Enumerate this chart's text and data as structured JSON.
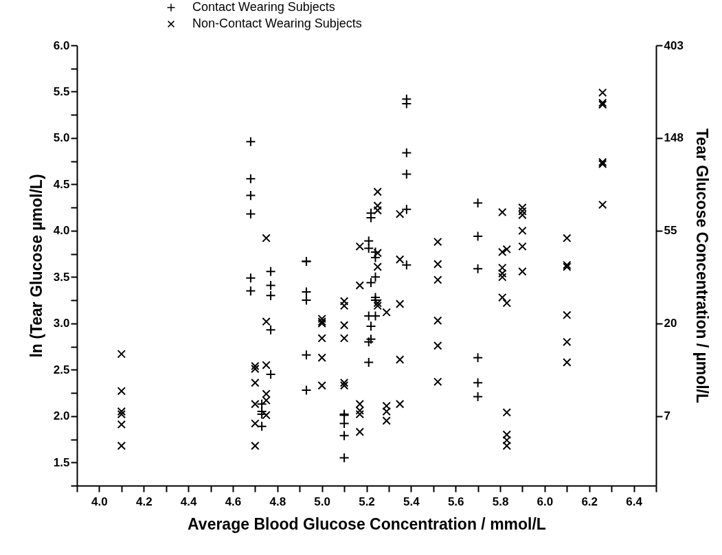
{
  "chart_data": {
    "type": "scatter",
    "xlabel": "Average Blood Glucose Concentration / mmol/L",
    "ylabel": "ln (Tear Glucose µmol/L)",
    "y2label": "Tear Glucose Concentration / µmol/L",
    "xlim": [
      3.9,
      6.5
    ],
    "xticks": [
      {
        "value": 3.9,
        "label": null
      },
      {
        "value": 4,
        "label": "4.0"
      },
      {
        "value": 4.1,
        "label": null
      },
      4.2,
      {
        "value": 4.3,
        "label": null
      },
      4.4,
      {
        "value": 4.5,
        "label": null
      },
      4.6,
      {
        "value": 4.7,
        "label": null
      },
      4.8,
      {
        "value": 4.9,
        "label": null
      },
      {
        "value": 5,
        "label": "5.0"
      },
      {
        "value": 5.1,
        "label": null
      },
      5.2,
      {
        "value": 5.3,
        "label": null
      },
      5.4,
      {
        "value": 5.5,
        "label": null
      },
      5.6,
      {
        "value": 5.7,
        "label": null
      },
      5.8,
      {
        "value": 5.9,
        "label": null
      },
      {
        "value": 6,
        "label": "6.0"
      },
      {
        "value": 6.1,
        "label": null
      },
      6.2,
      {
        "value": 6.3,
        "label": null
      },
      6.4,
      {
        "value": 6.5,
        "label": null
      }
    ],
    "ylim": [
      1.25,
      6.0
    ],
    "yticks": [
      {
        "value": 1.25,
        "label": null
      },
      1.5,
      {
        "value": 1.75,
        "label": null
      },
      {
        "value": 2,
        "label": "2.0"
      },
      {
        "value": 2.25,
        "label": null
      },
      2.5,
      {
        "value": 2.75,
        "label": null
      },
      {
        "value": 3,
        "label": "3.0"
      },
      {
        "value": 3.25,
        "label": null
      },
      3.5,
      {
        "value": 3.75,
        "label": null
      },
      {
        "value": 4,
        "label": "4.0"
      },
      {
        "value": 4.25,
        "label": null
      },
      4.5,
      {
        "value": 4.75,
        "label": null
      },
      {
        "value": 5,
        "label": "5.0"
      },
      {
        "value": 5.25,
        "label": null
      },
      5.5,
      {
        "value": 5.75,
        "label": null
      },
      {
        "value": 6,
        "label": "6.0"
      }
    ],
    "log": "y2",
    "y2lim": [
      3.49,
      403.4
    ],
    "y2ticks": [
      {
        "value": 403.4,
        "label": "403"
      },
      {
        "value": 148.4,
        "label": "148"
      },
      {
        "value": 54.6,
        "label": "55"
      },
      {
        "value": 20.09,
        "label": "20"
      },
      {
        "value": 7.389,
        "label": "7"
      }
    ],
    "legend": "top",
    "series": [
      {
        "name": "Contact Wearing Subjects",
        "color": "#000000",
        "marker": "cross",
        "x": [
          4.68,
          4.68,
          4.68,
          4.68,
          4.68,
          4.68,
          4.73,
          4.73,
          4.73,
          4.73,
          4.77,
          4.77,
          4.77,
          4.77,
          4.77,
          4.93,
          4.93,
          4.93,
          4.93,
          4.93,
          4.93,
          5.1,
          5.1,
          5.1,
          5.1,
          5.1,
          5.21,
          5.21,
          5.21,
          5.21,
          5.21,
          5.22,
          5.22,
          5.22,
          5.22,
          5.22,
          5.24,
          5.24,
          5.24,
          5.24,
          5.24,
          5.24,
          5.38,
          5.38,
          5.38,
          5.38,
          5.38,
          5.38,
          5.7,
          5.7,
          5.7,
          5.7,
          5.7,
          5.7
        ],
        "values": [
          4.96,
          4.56,
          4.38,
          4.18,
          3.49,
          3.35,
          2.13,
          2.05,
          2.02,
          1.89,
          3.56,
          3.41,
          3.3,
          2.93,
          2.45,
          3.67,
          3.67,
          3.34,
          3.25,
          2.66,
          2.28,
          2.02,
          2.01,
          1.92,
          1.79,
          1.55,
          3.89,
          3.81,
          3.08,
          2.8,
          2.58,
          4.19,
          4.14,
          3.44,
          2.97,
          2.83,
          3.77,
          3.71,
          3.5,
          3.28,
          3.25,
          3.08,
          5.42,
          5.37,
          4.84,
          4.61,
          4.23,
          3.63,
          4.3,
          3.94,
          3.59,
          2.63,
          2.36,
          2.21
        ]
      },
      {
        "name": "Non-Contact Wearing Subjects",
        "color": "#000000",
        "marker": "x",
        "x": [
          4.1,
          4.1,
          4.1,
          4.1,
          4.1,
          4.1,
          4.7,
          4.7,
          4.7,
          4.7,
          4.7,
          4.7,
          4.75,
          4.75,
          4.75,
          4.75,
          4.75,
          4.75,
          5.0,
          5.0,
          5.0,
          5.0,
          5.0,
          5.0,
          5.1,
          5.1,
          5.1,
          5.1,
          5.1,
          5.1,
          5.17,
          5.17,
          5.17,
          5.17,
          5.17,
          5.17,
          5.25,
          5.25,
          5.25,
          5.25,
          5.25,
          5.25,
          5.25,
          5.29,
          5.29,
          5.29,
          5.29,
          5.35,
          5.35,
          5.35,
          5.35,
          5.35,
          5.52,
          5.52,
          5.52,
          5.52,
          5.52,
          5.52,
          5.81,
          5.81,
          5.81,
          5.81,
          5.81,
          5.81,
          5.83,
          5.83,
          5.83,
          5.83,
          5.83,
          5.83,
          5.9,
          5.9,
          5.9,
          5.9,
          5.9,
          5.9,
          6.1,
          6.1,
          6.1,
          6.1,
          6.1,
          6.1,
          6.26,
          6.26,
          6.26,
          6.26,
          6.26,
          6.26
        ],
        "values": [
          2.67,
          2.27,
          2.05,
          2.02,
          1.91,
          1.68,
          2.54,
          2.51,
          2.36,
          2.13,
          1.92,
          1.68,
          3.92,
          3.02,
          2.55,
          2.24,
          2.17,
          2.01,
          3.05,
          3.02,
          3.0,
          2.84,
          2.63,
          2.33,
          3.24,
          3.19,
          2.98,
          2.84,
          2.36,
          2.33,
          3.83,
          3.41,
          2.13,
          2.06,
          2.02,
          1.83,
          4.42,
          4.27,
          4.22,
          3.76,
          3.61,
          3.22,
          3.19,
          3.12,
          2.11,
          2.05,
          1.95,
          4.18,
          3.69,
          3.21,
          2.61,
          2.13,
          3.88,
          3.64,
          3.47,
          3.03,
          2.76,
          2.37,
          4.2,
          3.77,
          3.6,
          3.54,
          3.5,
          3.28,
          3.8,
          3.22,
          2.04,
          1.8,
          1.74,
          1.68,
          4.25,
          4.21,
          4.17,
          4.0,
          3.83,
          3.56,
          3.92,
          3.63,
          3.61,
          3.09,
          2.8,
          2.58,
          5.49,
          5.38,
          5.36,
          4.74,
          4.72,
          4.28
        ]
      }
    ]
  }
}
